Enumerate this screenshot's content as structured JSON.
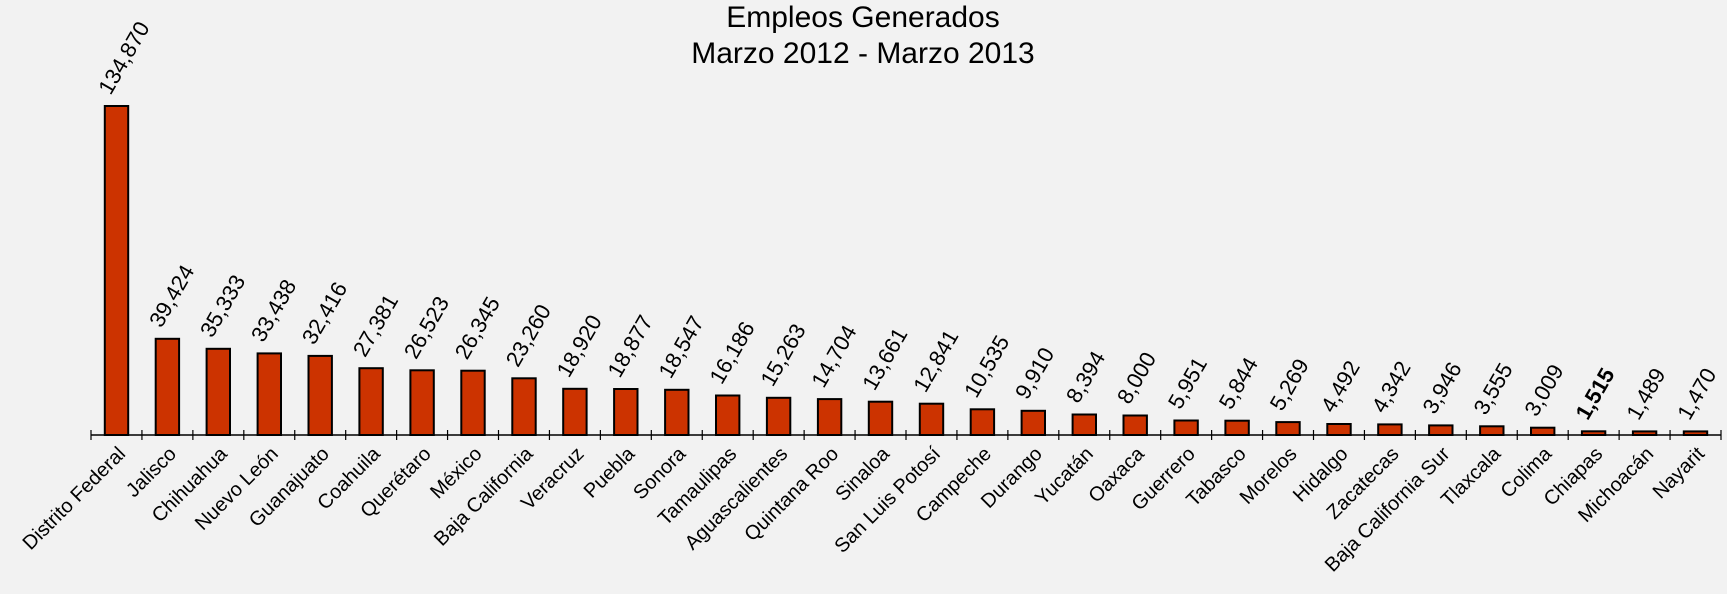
{
  "chart_data": {
    "type": "bar",
    "title": "Empleos Generados",
    "subtitle": "Marzo 2012 - Marzo 2013",
    "categories": [
      "Distrito Federal",
      "Jalisco",
      "Chihuahua",
      "Nuevo León",
      "Guanajuato",
      "Coahuila",
      "Querétaro",
      "México",
      "Baja California",
      "Veracruz",
      "Puebla",
      "Sonora",
      "Tamaulipas",
      "Aguascalientes",
      "Quintana Roo",
      "Sinaloa",
      "San Luis Potosí",
      "Campeche",
      "Durango",
      "Yucatán",
      "Oaxaca",
      "Guerrero",
      "Tabasco",
      "Morelos",
      "Hidalgo",
      "Zacatecas",
      "Baja California Sur",
      "Tlaxcala",
      "Colima",
      "Chiapas",
      "Michoacán",
      "Nayarit"
    ],
    "values": [
      134870,
      39424,
      35333,
      33438,
      32416,
      27381,
      26523,
      26345,
      23260,
      18920,
      18877,
      18547,
      16186,
      15263,
      14704,
      13661,
      12841,
      10535,
      9910,
      8394,
      8000,
      5951,
      5844,
      5269,
      4492,
      4342,
      3946,
      3555,
      3009,
      1515,
      1489,
      1470
    ],
    "value_labels": [
      "134,870",
      "39,424",
      "35,333",
      "33,438",
      "32,416",
      "27,381",
      "26,523",
      "26,345",
      "23,260",
      "18,920",
      "18,877",
      "18,547",
      "16,186",
      "15,263",
      "14,704",
      "13,661",
      "12,841",
      "10,535",
      "9,910",
      "8,394",
      "8,000",
      "5,951",
      "5,844",
      "5,269",
      "4,492",
      "4,342",
      "3,946",
      "3,555",
      "3,009",
      "1,515",
      "1,489",
      "1,470"
    ],
    "highlight": "Chiapas",
    "bar_color": "#cc3300",
    "background": "#f2f2f2",
    "ylim": [
      0,
      134870
    ],
    "grid": false,
    "legend": "none"
  }
}
